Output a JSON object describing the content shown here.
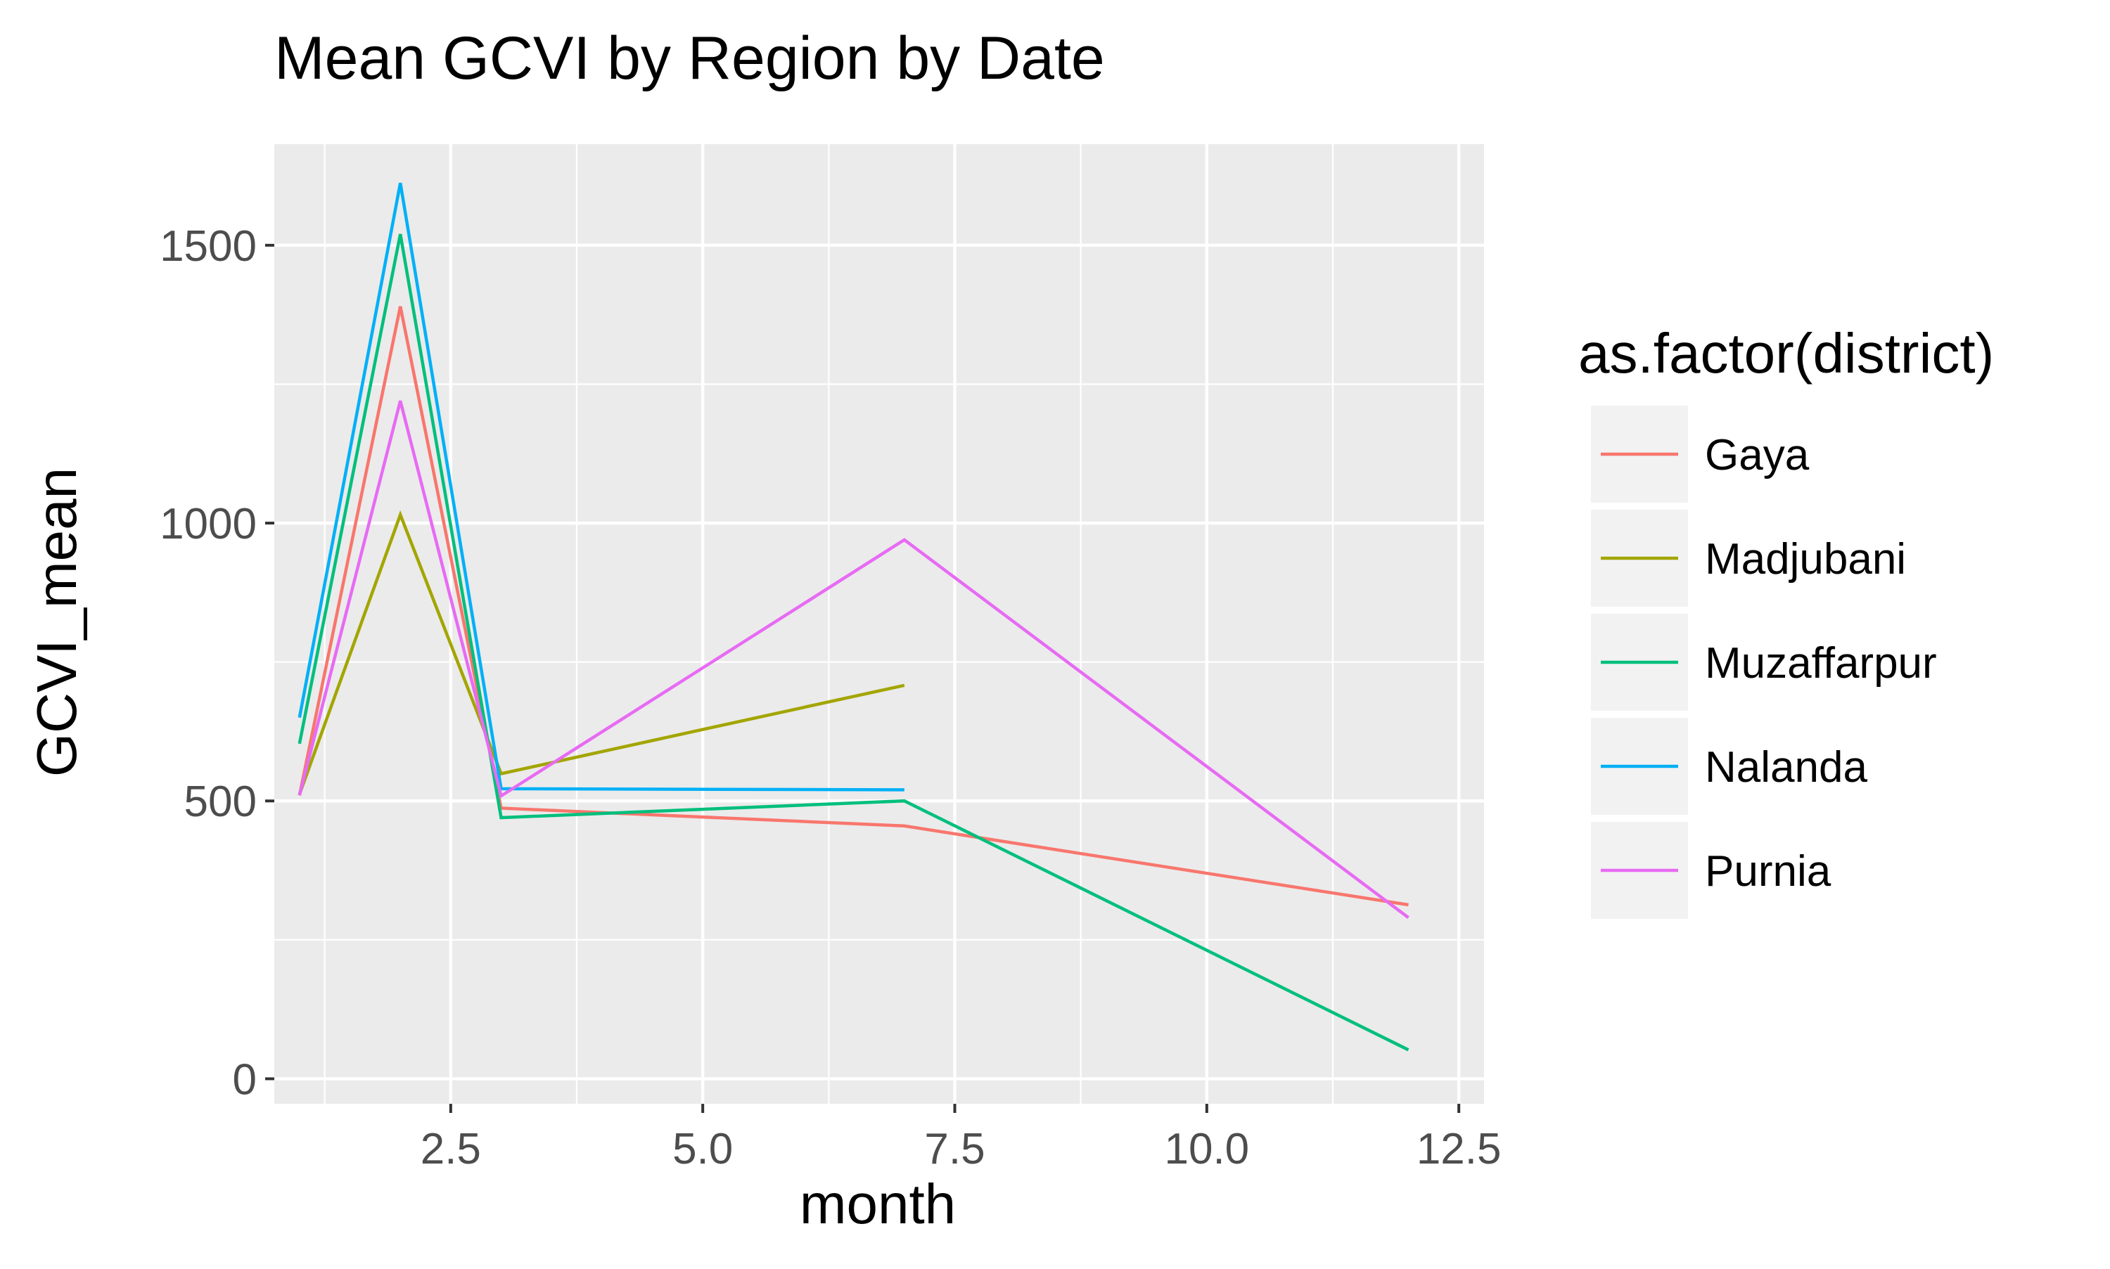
{
  "chart_data": {
    "type": "line",
    "title": "Mean GCVI by Region by Date",
    "xlabel": "month",
    "ylabel": "GCVI_mean",
    "xlim": [
      0.75,
      12.75
    ],
    "ylim": [
      -45,
      1682
    ],
    "x_ticks": [
      2.5,
      5.0,
      7.5,
      10.0,
      12.5
    ],
    "x_tick_labels": [
      "2.5",
      "5.0",
      "7.5",
      "10.0",
      "12.5"
    ],
    "y_ticks": [
      0,
      500,
      1000,
      1500
    ],
    "y_tick_labels": [
      "0",
      "500",
      "1000",
      "1500"
    ],
    "grid": true,
    "legend": {
      "title": "as.factor(district)",
      "position": "right"
    },
    "series": [
      {
        "name": "Gaya",
        "color": "#F8766D",
        "x": [
          1,
          2,
          3,
          7,
          12
        ],
        "y": [
          510,
          1390,
          487,
          455,
          313
        ]
      },
      {
        "name": "Madjubani",
        "color": "#A3A500",
        "x": [
          1,
          2,
          3,
          7
        ],
        "y": [
          512,
          1015,
          549,
          708
        ]
      },
      {
        "name": "Muzaffarpur",
        "color": "#00BF7D",
        "x": [
          1,
          2,
          3,
          7,
          12
        ],
        "y": [
          603,
          1520,
          470,
          500,
          52
        ]
      },
      {
        "name": "Nalanda",
        "color": "#00B0F6",
        "x": [
          1,
          2,
          3,
          7
        ],
        "y": [
          650,
          1612,
          522,
          520
        ]
      },
      {
        "name": "Purnia",
        "color": "#E76BF3",
        "x": [
          1,
          2,
          3,
          7,
          12
        ],
        "y": [
          510,
          1220,
          509,
          970,
          290
        ]
      }
    ]
  }
}
